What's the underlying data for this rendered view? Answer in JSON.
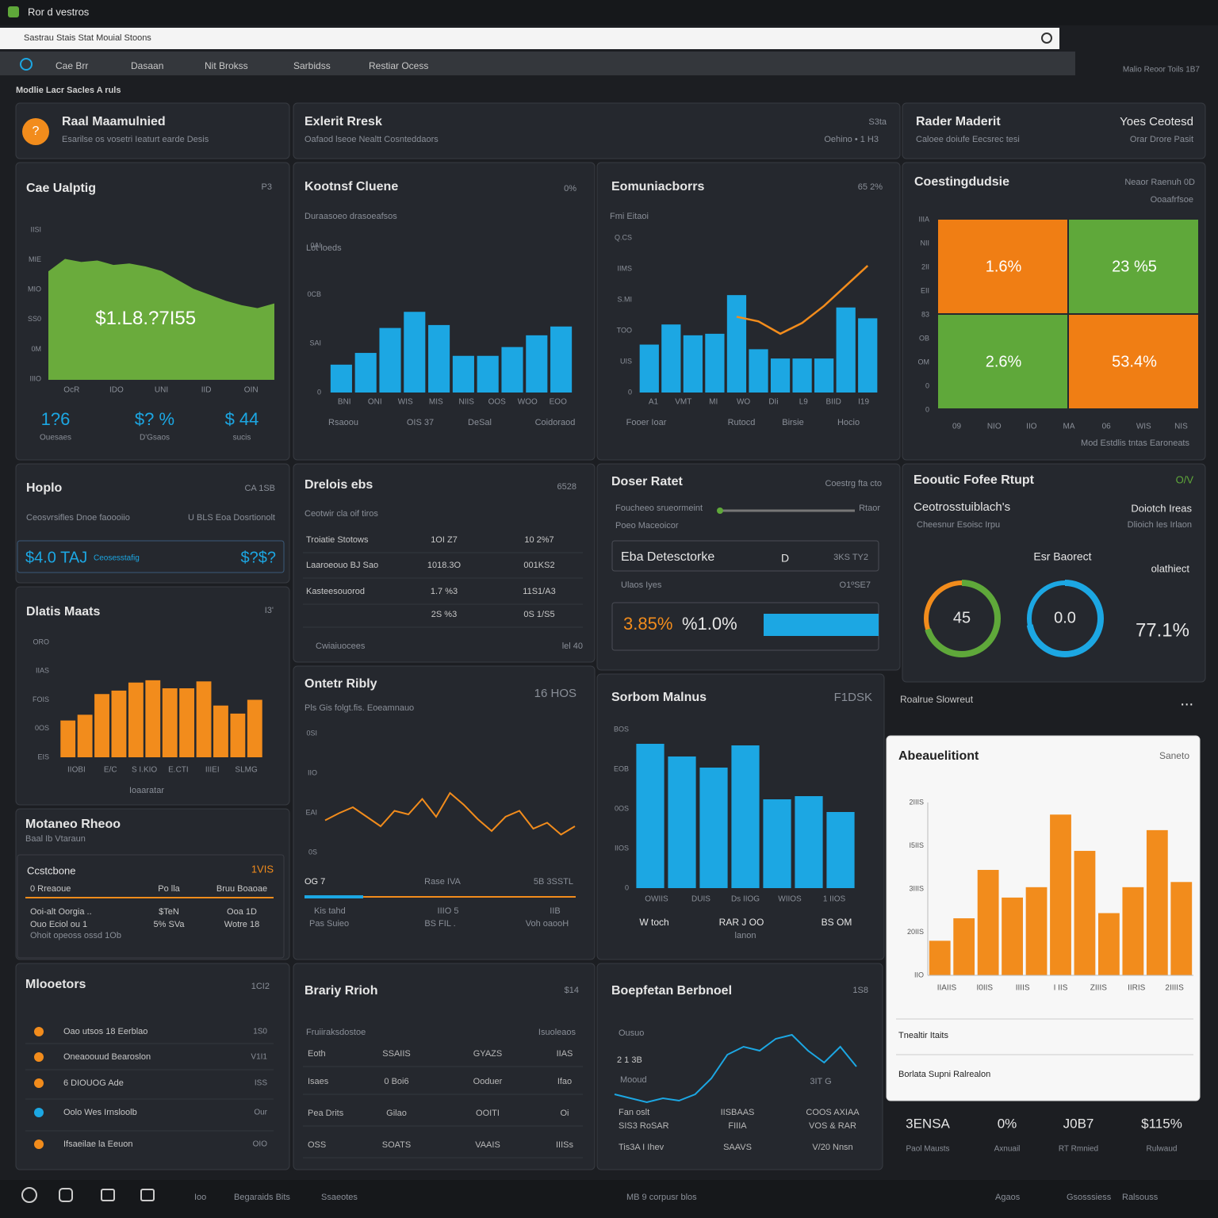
{
  "header": {
    "title": "Ror d vestros",
    "address": "Sastrau Stais Stat Mouial Stoons",
    "breadcrumb": "Modlie Lacr Sacles A ruls",
    "breadcrumb_right": "Malio Reoor Toils 1B7"
  },
  "nav": [
    "Cae Brr",
    "Dasaan",
    "Nit Brokss",
    "Sarbidss",
    "Restiar Ocess"
  ],
  "panels": [
    {
      "title": "Raal Maamulnied",
      "texts": [
        "Esarilse os vosetri Ieaturt earde Desis",
        "?"
      ]
    },
    {
      "title": "Exlerit Rresk",
      "right": "S3ta",
      "texts": [
        "Oafaod lseoe Nealtt Cosnteddaors",
        "Oehino • 1 H3"
      ]
    },
    {
      "title": "Rader Maderit",
      "right": "Yoes Ceotesd",
      "texts": [
        "Caloee doiufe Eecsrec tesi",
        "Orar Drore Pasit"
      ]
    },
    {
      "title": "Cae Ualptig",
      "right": "P3",
      "texts": [],
      "chart": {
        "type": "area",
        "color": "#6aab3c",
        "ylim": [
          0,
          100
        ],
        "values": [
          72,
          80,
          78,
          79,
          76,
          77,
          75,
          72,
          66,
          60,
          56,
          52,
          49,
          47,
          50
        ],
        "overlay": "$1.L8.?7I55",
        "x_labels": [
          "OcR",
          "IDO",
          "UNI",
          "IID",
          "OIN"
        ],
        "y_labels": [
          "IIIO",
          "0M",
          "SS0",
          "MIO",
          "MIE",
          "IISI"
        ]
      },
      "stats": [
        {
          "value": "1?6",
          "label": "Ouesaes"
        },
        {
          "value": "$? %",
          "label": "D'Gsaos"
        },
        {
          "value": "$ 44",
          "label": "sucis"
        }
      ]
    },
    {
      "title": "Kootnsf Cluene",
      "right": "0%",
      "texts": [
        "Duraasoeo drasoeafsos",
        "Lot loeds",
        "Rsaoou",
        "OIS 37",
        "DeSal",
        "Coidoraod"
      ],
      "chart": {
        "type": "bar",
        "color": "#1ca7e3",
        "ylim": [
          0,
          100
        ],
        "values": [
          19,
          27,
          44,
          55,
          46,
          25,
          25,
          31,
          39,
          45
        ],
        "x_labels": [
          "BNI",
          "ONI",
          "WIS",
          "MIS",
          "NIIS",
          "OOS",
          "WOO",
          "EOO"
        ],
        "y_labels": [
          "0",
          "SAI",
          "0CB",
          "0AI"
        ]
      }
    },
    {
      "title": "Eomuniacborrs",
      "right": "65 2%",
      "texts": [
        "Fmi Eitaoi",
        "Fooer Ioar",
        "Rutocd",
        "Birsie",
        "Hocio"
      ],
      "chart": {
        "type": "bar",
        "color": "#1ca7e3",
        "ylim": [
          0,
          100
        ],
        "values": [
          31,
          44,
          37,
          38,
          63,
          28,
          22,
          22,
          22,
          55,
          48
        ],
        "line": [
          null,
          null,
          null,
          null,
          49,
          46,
          38,
          45,
          56,
          69,
          82
        ],
        "line_color": "#f28c1c",
        "x_labels": [
          "A1",
          "VMT",
          "MI",
          "WO",
          "DIi",
          "L9",
          "BIID",
          "I19"
        ],
        "y_labels": [
          "0",
          "UIS",
          "TOO",
          "S.MI",
          "IIMS",
          "Q.CS"
        ]
      }
    },
    {
      "title": "Coestingdudsie",
      "right": "Neaor Raenuh 0D",
      "texts": [
        "Ooaafrfsoe",
        "Mod Estdlis tntas Earoneats"
      ],
      "cells": [
        {
          "label": "1.6%",
          "color": "#f07e14"
        },
        {
          "label": "23 %5",
          "color": "#5fa83a"
        },
        {
          "label": "2.6%",
          "color": "#5fa83a"
        },
        {
          "label": "53.4%",
          "color": "#f07e14"
        }
      ],
      "chart": {
        "type": "grid",
        "x_labels": [
          "09",
          "NIO",
          "IIO",
          "MA",
          "06",
          "WIS",
          "NIS"
        ],
        "y_labels": [
          "0",
          "0",
          "OM",
          "OB",
          "83",
          "EII",
          "2II",
          "NII",
          "IIIA"
        ]
      }
    },
    {
      "title": "Hoplo",
      "right": "CA 1SB",
      "texts": [
        "Ceosvrsifles Dnoe faoooiio",
        "U BLS Eoa Dosrtionolt",
        "$4.0 TAJ",
        "Ceosesstafig",
        "$?$?"
      ]
    },
    {
      "title": "Drelois ebs",
      "right": "6528",
      "texts": [
        "Ceotwir cla oif tiros",
        "Cwiaiuocees",
        "lel 40"
      ],
      "rows": [
        [
          "Troiatie Stotows",
          "1OI Z7",
          "10 2%7"
        ],
        [
          "Laaroeouo BJ Sao",
          "1018.3O",
          "001KS2"
        ],
        [
          "Kasteesouorod",
          "1.7 %3",
          "11S1/A3"
        ],
        [
          "",
          "2S %3",
          "0S 1/S5"
        ]
      ]
    },
    {
      "title": "Doser Ratet",
      "right": "Coestrg fta cto",
      "texts": [
        "Foucheeo srueormeint",
        "Rtaor",
        "Poeo Maceoicor",
        "Eba Detesctorke",
        "D",
        "3KS TY2",
        "Ulaos Iyes",
        "O1ºSE7",
        "3.85%",
        "%1.0%"
      ]
    },
    {
      "title": "Eooutic Fofee Rtupt",
      "right": "O/V",
      "texts": [
        "Ceotrosstuiblach's",
        "Doiotch Ireas",
        "Cheesnur Esoisc Irpu",
        "Dlioich Ies Irlaon",
        "Esr Baorect",
        "olathiect",
        "77.1%"
      ],
      "gauges": [
        {
          "label": "45",
          "fill": 70,
          "color": "#5fa83a",
          "color2": "#f28c1c"
        },
        {
          "label": "0.0",
          "fill": 72,
          "color": "#1ca7e3",
          "color2": "#1ca7e3"
        }
      ]
    },
    {
      "title": "Dlatis Maats",
      "right": "I3'",
      "texts": [
        "Ioaaratar"
      ],
      "chart": {
        "type": "bar",
        "color": "#f28c1c",
        "ylim": [
          0,
          100
        ],
        "values": [
          32,
          37,
          55,
          58,
          65,
          67,
          60,
          60,
          66,
          45,
          38,
          50
        ],
        "x_labels": [
          "IIOBI",
          "E/C",
          "S I.KIO",
          "E.CTI",
          "IIIEI",
          "SLMG"
        ],
        "y_labels": [
          "EIS",
          "0OS",
          "FOIS",
          "IIAS",
          "ORO"
        ]
      }
    },
    {
      "title": "Motaneo Rheoo",
      "texts": [
        "Baal Ib Vtaraun",
        "Ccstcbone",
        "1VIS",
        "Ohoit opeoss ossd 1Ob"
      ],
      "rows": [
        [
          "0 Rreaoue",
          "Po lla",
          "Bruu Boaoae"
        ],
        [
          "Ooi-alt Oorgia ..",
          "$TeN",
          "Ooa 1D"
        ],
        [
          "Ouo Eciol ou 1",
          "5% SVa",
          "Wotre 18"
        ]
      ]
    },
    {
      "title": "Ontetr Ribly",
      "right": "16 HOS",
      "texts": [
        "Pls Gis folgt.fis. Eoeamnauo",
        "OG 7",
        "Rase IVA",
        "5B 3SSTL",
        "Kis tahd",
        "Pas Suieo",
        "IIIO 5",
        "BS FIL .",
        "IIB",
        "Voh oaooH"
      ],
      "chart": {
        "type": "line",
        "color": "#f28c1c",
        "ylim": [
          0,
          100
        ],
        "values": [
          27,
          33,
          38,
          30,
          22,
          35,
          32,
          45,
          30,
          50,
          40,
          28,
          18,
          30,
          35,
          20,
          25,
          15,
          22
        ],
        "y_labels": [
          "0S",
          "EAI",
          "IIO",
          "0SI"
        ]
      }
    },
    {
      "title": "Sorbom Malnus",
      "right": "F1DSK",
      "texts": [
        "W toch",
        "RAR J OO",
        "BS OM",
        "lanon"
      ],
      "chart": {
        "type": "bar",
        "color": "#1ca7e3",
        "ylim": [
          0,
          100
        ],
        "values": [
          91,
          83,
          76,
          90,
          56,
          58,
          48
        ],
        "x_labels": [
          "OWIIS",
          "DUIS",
          "Ds IIOG",
          "WIIOS",
          "1 IIOS"
        ],
        "y_labels": [
          "0",
          "IIOS",
          "0OS",
          "EOB",
          "BOS"
        ]
      }
    },
    {
      "title": "Abeauelitiont",
      "right": "Saneto",
      "texts": [
        "Tnealtir Itaits",
        "Borlata Supni Ralrealon",
        "Roalrue Slowreut",
        "..."
      ],
      "chart": {
        "type": "bar",
        "color": "#f28c1c",
        "ylim": [
          0,
          100
        ],
        "values": [
          20,
          33,
          61,
          45,
          51,
          93,
          72,
          36,
          51,
          84,
          54
        ],
        "x_labels": [
          "IIAIIS",
          "I0IIS",
          "IIIIS",
          "I IIS",
          "ZIIIS",
          "IIRIS",
          "2IIIIS"
        ],
        "y_labels": [
          "IIO",
          "20IIS",
          "3IIIS",
          "I5IIS",
          "2IIIS"
        ]
      }
    },
    {
      "title": "Mlooetors",
      "right": "1CI2",
      "texts": [],
      "list": [
        {
          "text": "Oao utsos 18 Eerblao",
          "right": "1S0",
          "color": "#f28c1c"
        },
        {
          "text": "Oneaoouud Bearoslon",
          "right": "V1I1",
          "color": "#f28c1c"
        },
        {
          "text": "6 DIOUOG Ade",
          "right": "ISS",
          "color": "#f28c1c"
        },
        {
          "text": "Oolo Wes Irnsloolb",
          "right": "Our",
          "color": "#1ca7e3"
        },
        {
          "text": "Ifsaeilae la Eeuon",
          "right": "OIO",
          "color": "#f28c1c"
        }
      ]
    },
    {
      "title": "Brariy Rrioh",
      "right": "$14",
      "texts": [
        "Fruiiraksdostoe",
        "Isuoleaos"
      ],
      "rows": [
        [
          "Eoth",
          "SSAIIS",
          "GYAZS",
          "IIAS"
        ],
        [
          "Isaes",
          "0 Boi6",
          "Ooduer",
          "Ifao"
        ],
        [
          "Pea Drits",
          "Gilao",
          "OOITI",
          "Oi"
        ],
        [
          "OSS",
          "SOATS",
          "VAAIS",
          "IIISs"
        ]
      ]
    },
    {
      "title": "Boepfetan Berbnoel",
      "right": "1S8",
      "texts": [
        "Ousuo",
        "2 1 3B",
        "Mooud",
        "3IT G"
      ],
      "chart": {
        "type": "line",
        "color": "#1ca7e3",
        "ylim": [
          0,
          100
        ],
        "values": [
          20,
          15,
          10,
          15,
          12,
          20,
          40,
          70,
          80,
          75,
          90,
          95,
          75,
          60,
          80,
          55
        ]
      },
      "rows": [
        [
          "Fan oslt",
          "IISBAAS",
          "COOS AXIAA"
        ],
        [
          "SIS3 RoSAR",
          "FIIIA",
          "VOS & RAR"
        ],
        [
          "Tis3A I Ihev",
          "SAAVS",
          "V/20 Nnsn"
        ]
      ]
    },
    {
      "title": "",
      "texts": [],
      "stats": [
        {
          "value": "3ENSA",
          "label": "Paol Mausts"
        },
        {
          "value": "0%",
          "label": "Axnuail"
        },
        {
          "value": "J0B7",
          "label": "RT Rmnied"
        },
        {
          "value": "$115%",
          "label": "Rulwaud"
        }
      ]
    }
  ],
  "footer": [
    "Ioo",
    "Begaraids Bits",
    "Ssaeotes",
    "MB 9 corpusr blos",
    "Agaos",
    "Gsosssiess",
    "Ralsouss"
  ]
}
